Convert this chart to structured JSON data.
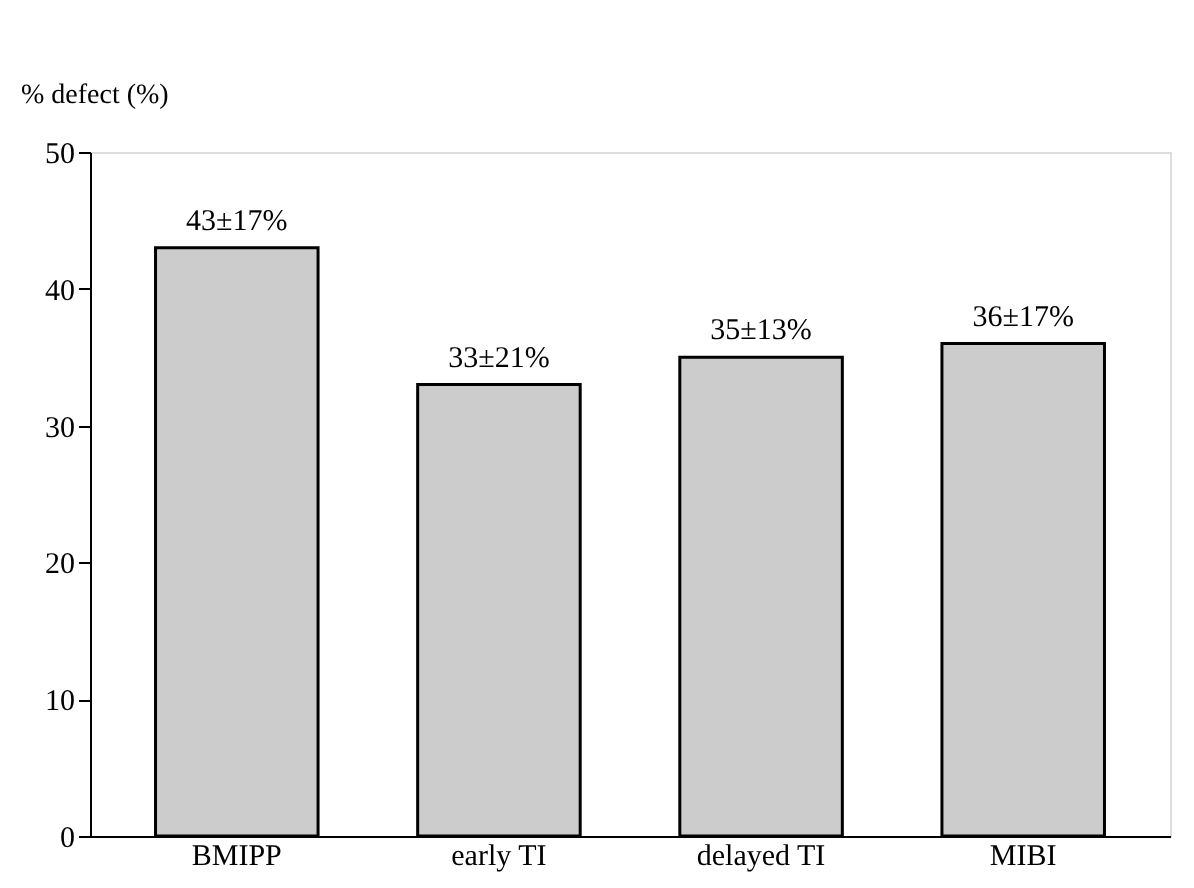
{
  "chart_data": {
    "type": "bar",
    "ylabel": "% defect (%)",
    "categories": [
      "BMIPP",
      "early  TI",
      "delayed TI",
      "MIBI"
    ],
    "values": [
      43,
      33,
      35,
      36
    ],
    "value_labels": [
      "43±17%",
      "33±21%",
      "35±13%",
      "36±17%"
    ],
    "color": "#cccccc",
    "ylim": [
      0,
      50
    ],
    "yticks": [
      0,
      10,
      20,
      30,
      40,
      50
    ],
    "grid": false
  }
}
